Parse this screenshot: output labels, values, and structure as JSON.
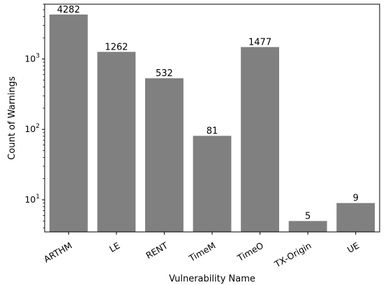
{
  "chart_data": {
    "type": "bar",
    "categories": [
      "ARTHM",
      "LE",
      "RENT",
      "TimeM",
      "TimeO",
      "TX-Origin",
      "UE"
    ],
    "values": [
      4282,
      1262,
      532,
      81,
      1477,
      5,
      9
    ],
    "data_labels": [
      "4282",
      "1262",
      "532",
      "81",
      "1477",
      "5",
      "9"
    ],
    "xlabel": "Vulnerability Name",
    "ylabel": "Count of Warnings",
    "yscale": "log",
    "ylim": [
      3.5,
      6000
    ],
    "y_major_ticks": [
      {
        "value": 10,
        "base": "10",
        "exp": "1"
      },
      {
        "value": 100,
        "base": "10",
        "exp": "2"
      },
      {
        "value": 1000,
        "base": "10",
        "exp": "3"
      }
    ],
    "grid": false,
    "bar_color": "#808080",
    "axis_color": "#000000"
  }
}
